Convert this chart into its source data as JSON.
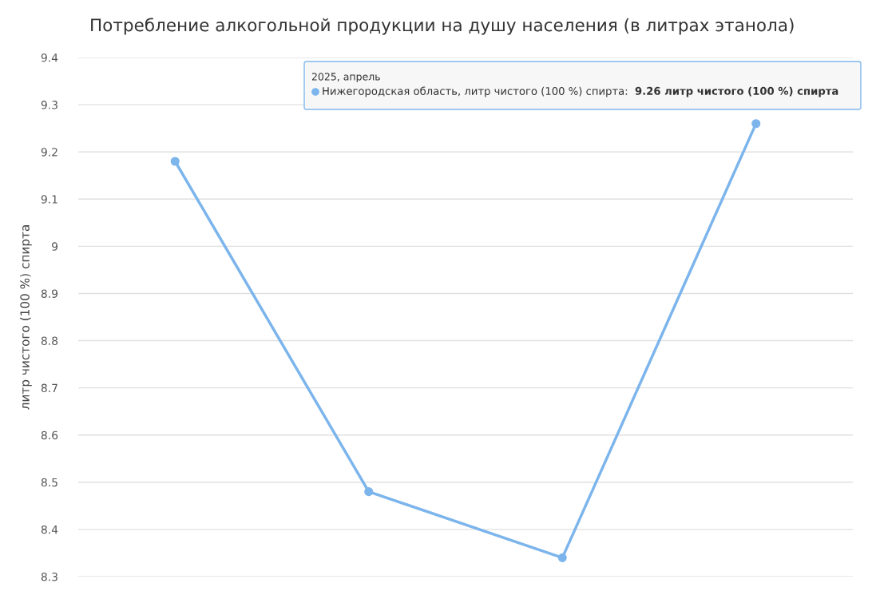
{
  "chart_data": {
    "type": "line",
    "title": "Потребление алкогольной продукции на душу населения (в литрах этанола)",
    "ylabel": "литр чистого (100 %) спирта",
    "categories": [
      null,
      null,
      null,
      null
    ],
    "series": [
      {
        "name": "Нижегородская область, литр чистого (100 %) спирта:",
        "color": "#7cb5ec",
        "values": [
          9.18,
          8.48,
          8.34,
          9.26
        ]
      }
    ],
    "annotations": [
      "2025, апрель",
      "9.26 литр чистого (100 %) спирта"
    ],
    "ylim": [
      8.3,
      9.4
    ],
    "yticks": [
      8.3,
      8.4,
      8.5,
      8.6,
      8.7,
      8.8,
      8.9,
      9,
      9.1,
      9.2,
      9.3,
      9.4
    ],
    "grid": "y",
    "marker": "circle",
    "line_style": "solid",
    "tick_labels": "y"
  }
}
